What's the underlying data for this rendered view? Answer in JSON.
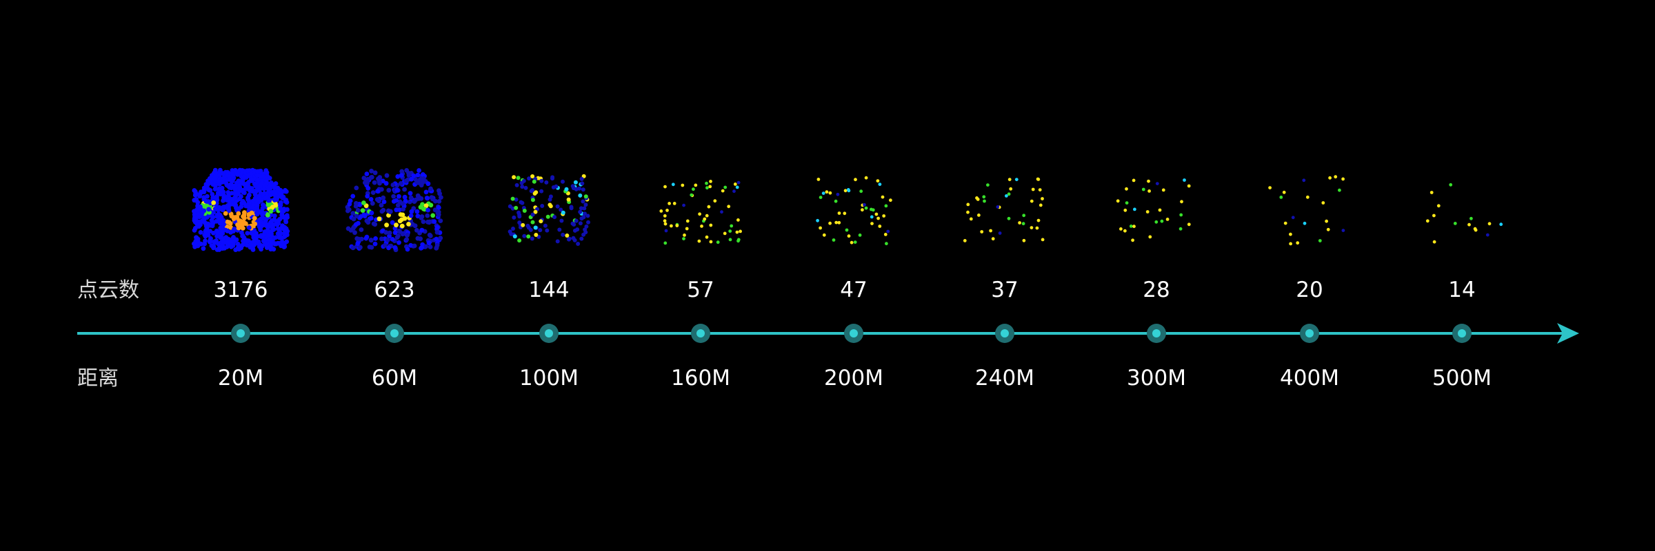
{
  "row_labels": {
    "count": "点云数",
    "distance": "距离"
  },
  "colors": {
    "background": "#000000",
    "axis": "#2ec4c8",
    "marker_ring": "#1f6d70",
    "marker_core": "#35d2d6",
    "point_blue": "#0a0aff",
    "point_dark_blue": "#1010b0",
    "point_yellow": "#ffe81a",
    "point_green": "#37e02b",
    "point_cyan": "#1ad1ff",
    "point_orange": "#ff9a1a"
  },
  "chart_data": {
    "type": "scatter",
    "title": "",
    "xlabel": "距离",
    "ylabel": "点云数",
    "categories": [
      "20M",
      "60M",
      "100M",
      "160M",
      "200M",
      "240M",
      "300M",
      "400M",
      "500M"
    ],
    "series": [
      {
        "name": "点云数",
        "values": [
          3176,
          623,
          144,
          57,
          47,
          37,
          28,
          20,
          14
        ]
      }
    ],
    "grid": false,
    "legend": "none"
  }
}
